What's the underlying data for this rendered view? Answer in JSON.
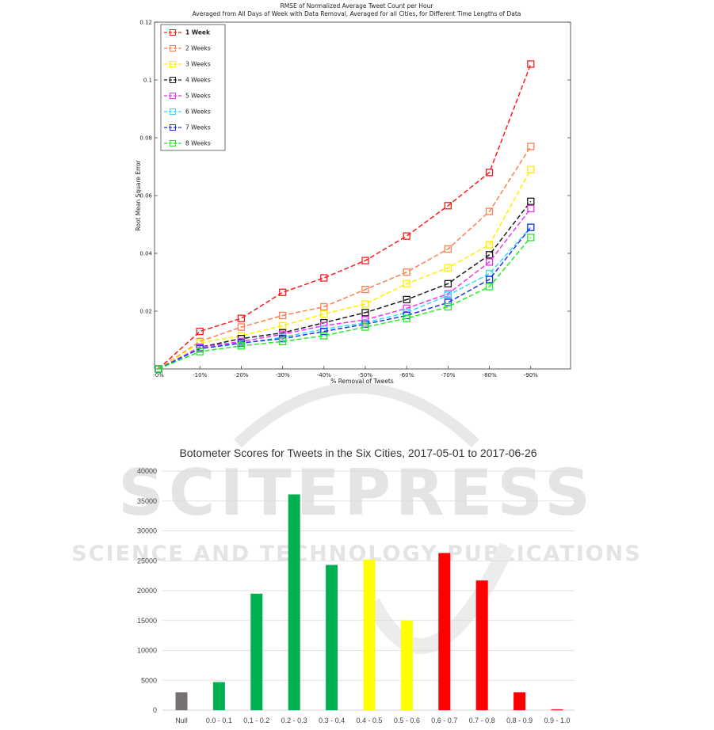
{
  "watermark": {
    "main": "SCITEPRESS",
    "sub": "SCIENCE AND TECHNOLOGY PUBLICATIONS"
  },
  "chart_data": [
    {
      "type": "line",
      "title": "RMSE of Normalized Average Tweet Count per Hour",
      "subtitle": "Averaged from All Days of Week with Data Removal, Averaged for all Cities, for Different Time Lengths of Data",
      "xlabel": "% Removal of Tweets",
      "ylabel": "Root Mean Square Error",
      "categories": [
        "-0%",
        "-10%",
        "-20%",
        "-30%",
        "-40%",
        "-50%",
        "-60%",
        "-70%",
        "-80%",
        "-90%"
      ],
      "ylim": [
        0,
        0.12
      ],
      "yticks": [
        "0.02",
        "0.04",
        "0.06",
        "0.08",
        "0.1",
        "0.12"
      ],
      "legend_position": "top-left",
      "series": [
        {
          "name": "1 Week",
          "color": "#ff1a1a",
          "values": [
            0,
            0.013,
            0.0175,
            0.0265,
            0.0315,
            0.0375,
            0.046,
            0.0565,
            0.068,
            0.1055
          ]
        },
        {
          "name": "2 Weeks",
          "color": "#ff7f4f",
          "values": [
            0,
            0.0095,
            0.0145,
            0.0185,
            0.0215,
            0.0275,
            0.0335,
            0.0415,
            0.0545,
            0.077
          ]
        },
        {
          "name": "3 Weeks",
          "color": "#ffee00",
          "values": [
            0,
            0.009,
            0.0115,
            0.015,
            0.019,
            0.0225,
            0.0295,
            0.035,
            0.043,
            0.069
          ]
        },
        {
          "name": "4 Weeks",
          "color": "#1a1a1a",
          "values": [
            0,
            0.0075,
            0.0105,
            0.0125,
            0.016,
            0.0195,
            0.024,
            0.0295,
            0.0395,
            0.058
          ]
        },
        {
          "name": "5 Weeks",
          "color": "#ee33ee",
          "values": [
            0,
            0.0075,
            0.0095,
            0.012,
            0.015,
            0.017,
            0.021,
            0.026,
            0.037,
            0.0555
          ]
        },
        {
          "name": "6 Weeks",
          "color": "#33ddff",
          "values": [
            0,
            0.007,
            0.0088,
            0.011,
            0.0138,
            0.016,
            0.0195,
            0.0255,
            0.033,
            0.049
          ]
        },
        {
          "name": "7 Weeks",
          "color": "#2233ee",
          "values": [
            0,
            0.007,
            0.009,
            0.0105,
            0.013,
            0.0155,
            0.0185,
            0.023,
            0.031,
            0.049
          ]
        },
        {
          "name": "8 Weeks",
          "color": "#22ee22",
          "values": [
            0,
            0.006,
            0.008,
            0.0095,
            0.0115,
            0.0145,
            0.0175,
            0.0215,
            0.0285,
            0.0455
          ]
        }
      ]
    },
    {
      "type": "bar",
      "title": "Botometer Scores for Tweets in the Six Cities, 2017-05-01 to 2017-06-26",
      "xlabel": "",
      "ylabel": "",
      "ylim": [
        0,
        40000
      ],
      "yticks": [
        "0",
        "5000",
        "10000",
        "15000",
        "20000",
        "25000",
        "30000",
        "35000",
        "40000"
      ],
      "grid": true,
      "categories": [
        "Null",
        "0.0 - 0.1",
        "0.1 - 0.2",
        "0.2 - 0.3",
        "0.3 - 0.4",
        "0.4 - 0.5",
        "0.5 - 0.6",
        "0.6 - 0.7",
        "0.7 - 0.8",
        "0.8 - 0.9",
        "0.9 - 1.0"
      ],
      "values": [
        3000,
        4700,
        19500,
        36100,
        24300,
        25200,
        15000,
        26300,
        21700,
        3000,
        150
      ],
      "colors": [
        "#767171",
        "#00b050",
        "#00b050",
        "#00b050",
        "#00b050",
        "#ffff00",
        "#ffff00",
        "#ff0000",
        "#ff0000",
        "#ff0000",
        "#ff0000"
      ]
    }
  ]
}
